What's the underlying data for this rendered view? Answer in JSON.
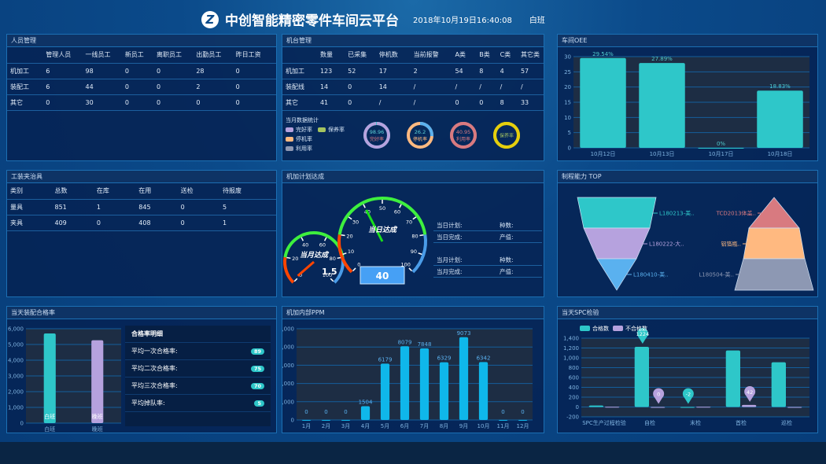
{
  "header": {
    "title": "中创智能精密零件车间云平台",
    "logo": "Z",
    "datetime": "2018年10月19日16:40:08",
    "shift": "白班"
  },
  "colors": {
    "teal": "#2ec7c9",
    "purple": "#b6a2de",
    "blue": "#5ab1ef",
    "orange": "#ffb980",
    "red": "#d87a80",
    "grey": "#8d98b3",
    "yellow": "#e5cf0d",
    "cyan": "#0fb7ea"
  },
  "personnel": {
    "title": "人员管理",
    "headers": [
      "",
      "管理人员",
      "一线员工",
      "新员工",
      "离职员工",
      "出勤员工",
      "昨日工资"
    ],
    "rows": [
      [
        "机加工",
        "6",
        "98",
        "0",
        "0",
        "28",
        "0"
      ],
      [
        "装配工",
        "6",
        "44",
        "0",
        "0",
        "2",
        "0"
      ],
      [
        "其它",
        "0",
        "30",
        "0",
        "0",
        "0",
        "0"
      ]
    ]
  },
  "machines": {
    "title": "机台管理",
    "headers": [
      "",
      "数量",
      "已采集",
      "停机数",
      "当前报警",
      "A类",
      "B类",
      "C类",
      "其它类"
    ],
    "rows": [
      [
        "机加工",
        "123",
        "52",
        "17",
        "2",
        "54",
        "8",
        "4",
        "57"
      ],
      [
        "装配线",
        "14",
        "0",
        "14",
        "/",
        "/",
        "/",
        "/",
        "/"
      ],
      [
        "其它",
        "41",
        "0",
        "/",
        "/",
        "0",
        "0",
        "8",
        "33"
      ]
    ],
    "legend_title": "当月数据统计",
    "legend": [
      "完好率",
      "保养率",
      "停机率",
      "利用率"
    ],
    "donuts": [
      {
        "value": "98.96",
        "label": "完好率",
        "pct": 98.96
      },
      {
        "value": "26.2",
        "label": "停机率",
        "pct": 26.2
      },
      {
        "value": "40.95",
        "label": "利用率",
        "pct": 100
      },
      {
        "value": "",
        "label": "保养率",
        "pct": 100
      }
    ]
  },
  "fixtures": {
    "title": "工装夹治具",
    "headers": [
      "类别",
      "总数",
      "在库",
      "在用",
      "送检",
      "待报废"
    ],
    "rows": [
      [
        "量具",
        "851",
        "1",
        "845",
        "0",
        "5"
      ],
      [
        "夹具",
        "409",
        "0",
        "408",
        "0",
        "1"
      ]
    ]
  },
  "plan": {
    "title": "机加计划达成",
    "gauge_month": {
      "label": "当月达成",
      "value": "1.5",
      "ticks": [
        "0",
        "20",
        "40",
        "60",
        "80",
        "100"
      ]
    },
    "gauge_day": {
      "label": "当日达成",
      "value": "40",
      "ticks": [
        "0",
        "10",
        "20",
        "30",
        "40",
        "50",
        "60",
        "70",
        "80",
        "90",
        "100"
      ]
    },
    "info": [
      [
        "当日计划:",
        "种数:"
      ],
      [
        "当日完成:",
        "产值:"
      ],
      [
        "当月计划:",
        "种数:"
      ],
      [
        "当月完成:",
        "产值:"
      ]
    ]
  },
  "assembly": {
    "title": "当天装配合格率",
    "detail_title": "合格率明细",
    "details": [
      {
        "label": "平均一次合格率:",
        "value": "89"
      },
      {
        "label": "平均二次合格率:",
        "value": "75"
      },
      {
        "label": "平均三次合格率:",
        "value": "70"
      },
      {
        "label": "平均掉队率:",
        "value": "5"
      }
    ]
  },
  "ppm": {
    "title": "机加内部PPM"
  },
  "spc": {
    "title": "当天SPC检验"
  },
  "oee": {
    "title": "车间OEE"
  },
  "process": {
    "title": "制程能力 TOP"
  },
  "chart_data": [
    {
      "id": "oee",
      "type": "bar",
      "categories": [
        "10月12日",
        "10月13日",
        "10月17日",
        "10月18日"
      ],
      "values": [
        29.54,
        27.89,
        0,
        18.83
      ],
      "labels": [
        "29.54%",
        "27.89%",
        "0%",
        "18.83%"
      ],
      "ylim": [
        0,
        30
      ],
      "yticks": [
        "0",
        "5",
        "10",
        "15",
        "20",
        "25",
        "30"
      ],
      "grid": true
    },
    {
      "id": "assembly",
      "type": "bar",
      "categories": [
        "白班",
        "晚班"
      ],
      "values": [
        5700,
        5270
      ],
      "ylim": [
        0,
        6000
      ],
      "yticks": [
        "0",
        "1,000",
        "2,000",
        "3,000",
        "4,000",
        "5,000",
        "6,000"
      ],
      "grid": true
    },
    {
      "id": "ppm",
      "type": "bar",
      "categories": [
        "1月",
        "2月",
        "3月",
        "4月",
        "5月",
        "6月",
        "7月",
        "8月",
        "9月",
        "10月",
        "11月",
        "12月"
      ],
      "values": [
        0,
        0,
        0,
        1504,
        6179,
        8079,
        7848,
        6329,
        9073,
        6342,
        0,
        0
      ],
      "ylim": [
        0,
        10000
      ],
      "yticks": [
        "0",
        "2,000",
        "4,000",
        "6,000",
        "8,000",
        "10,000"
      ],
      "grid": true
    },
    {
      "id": "spc",
      "type": "bar",
      "categories": [
        "SPC生产过程检验",
        "自检",
        "末检",
        "首检",
        "巡检"
      ],
      "ylim": [
        -200,
        1400
      ],
      "yticks": [
        "-200",
        "0",
        "200",
        "400",
        "600",
        "800",
        "1,000",
        "1,200",
        "1,400"
      ],
      "grid": true,
      "legend_placement": "top-left",
      "series": [
        {
          "name": "合格数",
          "values": [
            30,
            1224,
            -2,
            1150,
            910
          ],
          "pins": [
            "",
            "1224",
            "-2",
            "",
            ""
          ]
        },
        {
          "name": "不合格数",
          "values": [
            5,
            0,
            5,
            42,
            0
          ],
          "pins": [
            "",
            "0",
            "",
            "42",
            ""
          ]
        }
      ]
    },
    {
      "id": "funnel",
      "type": "funnel",
      "labels": [
        "L180213-美..",
        "L180222-大..",
        "L180410-美.."
      ]
    },
    {
      "id": "pyramid",
      "type": "pyramid",
      "labels": [
        "TCD2013体盖..",
        "铝箔瓶..",
        "L180504-美.."
      ]
    }
  ]
}
